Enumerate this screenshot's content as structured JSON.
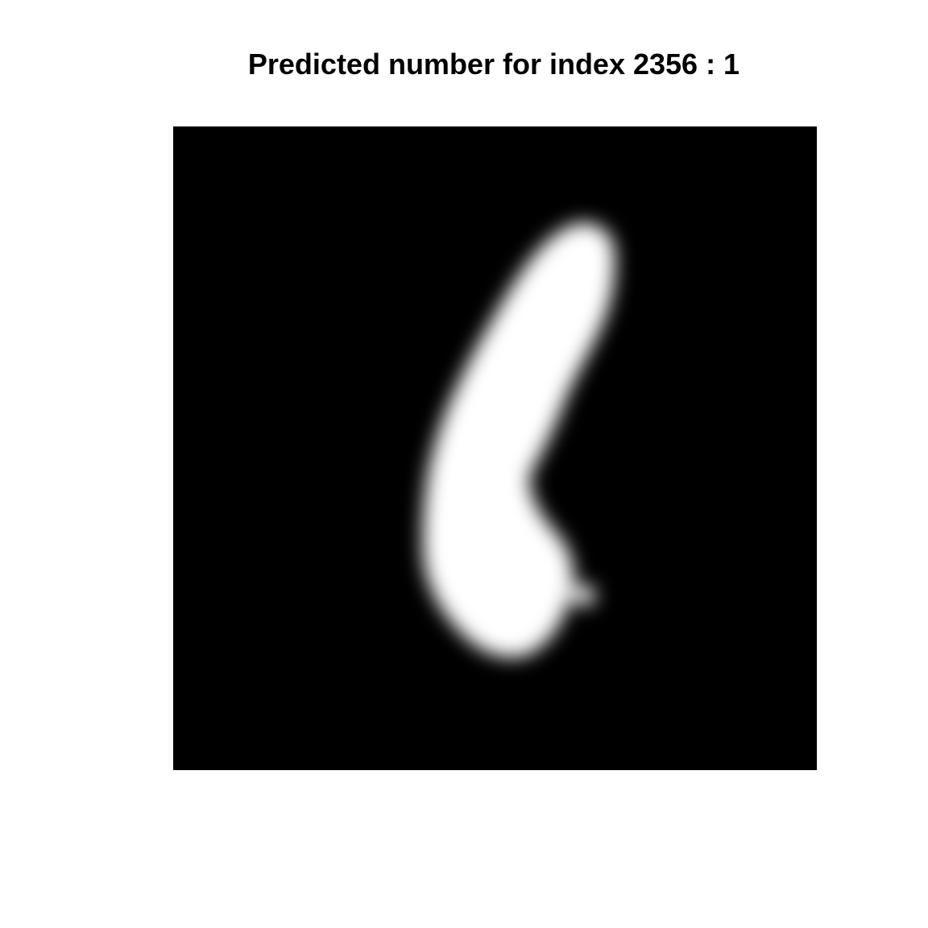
{
  "title": "Predicted number for index 2356 : 1",
  "image": {
    "description_icon": "mnist-digit-image",
    "background_color": "#000000",
    "stroke_color": "#ffffff"
  }
}
